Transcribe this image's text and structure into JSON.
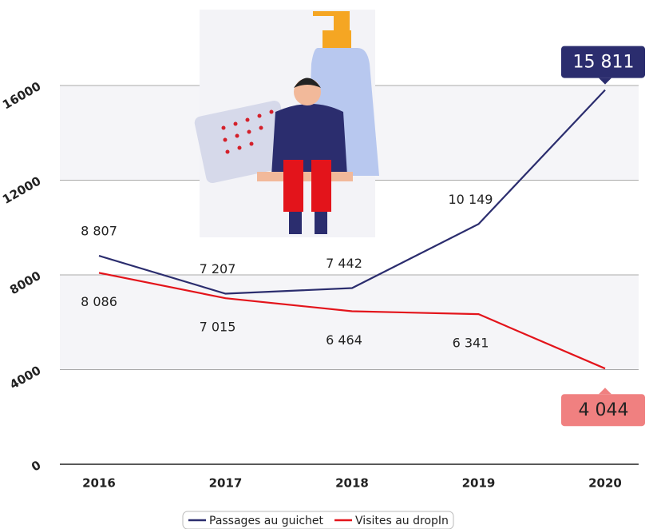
{
  "chart_data": {
    "type": "line",
    "categories": [
      "2016",
      "2017",
      "2018",
      "2019",
      "2020"
    ],
    "series": [
      {
        "name": "Passages au guichet",
        "color": "#2b2d6e",
        "values": [
          8807,
          7207,
          7442,
          10149,
          15811
        ],
        "value_labels": [
          "8 807",
          "7 207",
          "7 442",
          "10 149",
          "15 811"
        ]
      },
      {
        "name": "Visites au dropIn",
        "color": "#e3141b",
        "values": [
          8086,
          7015,
          6464,
          6341,
          4044
        ],
        "value_labels": [
          "8 086",
          "7 015",
          "6 464",
          "6 341",
          "4 044"
        ]
      }
    ],
    "ylim": [
      0,
      16000
    ],
    "yticks": [
      0,
      4000,
      8000,
      12000,
      16000
    ],
    "grid": true
  }
}
